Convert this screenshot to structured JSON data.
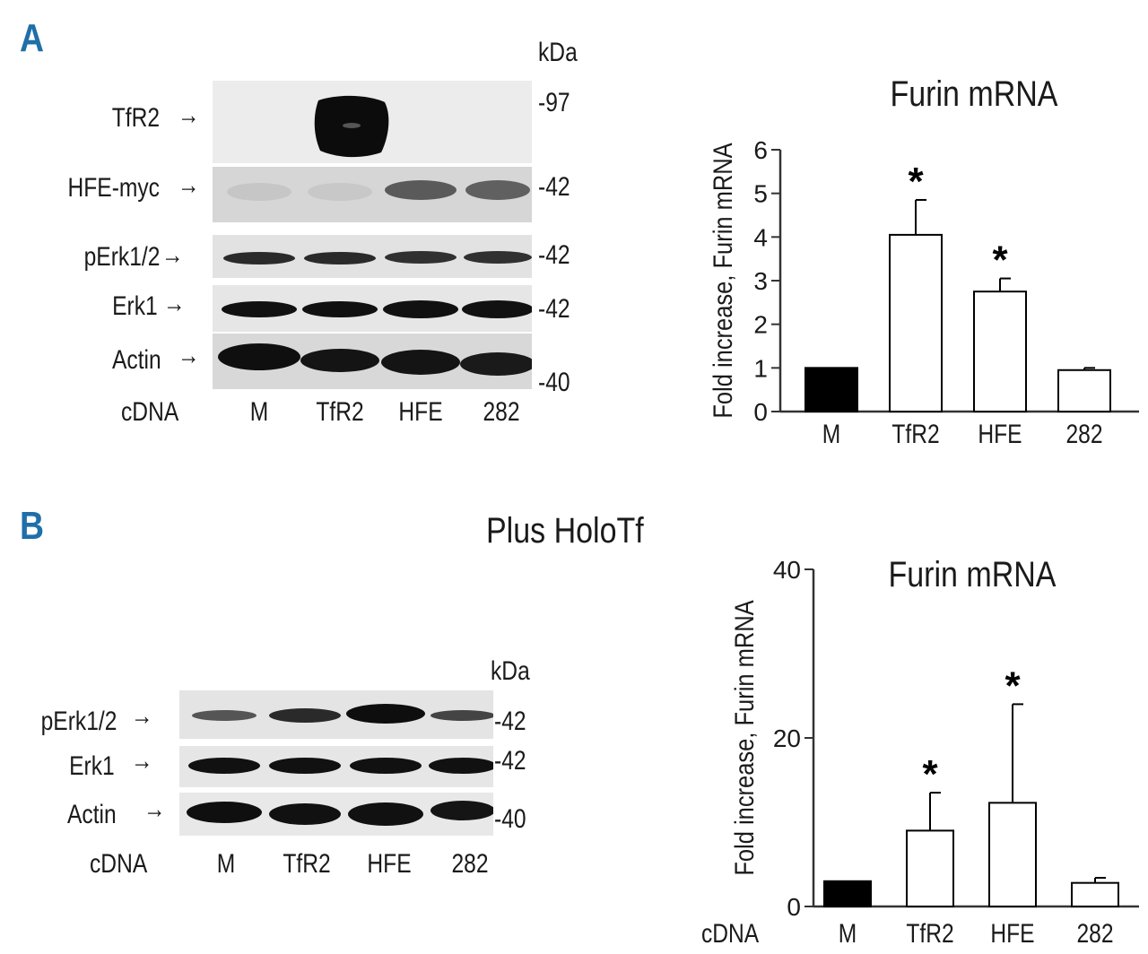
{
  "panel_a": {
    "letter": "A",
    "kda_label": "kDa",
    "blot_rows": [
      {
        "label": "TfR2",
        "marker": "-97"
      },
      {
        "label": "HFE-myc",
        "marker": "-42"
      },
      {
        "label": "pErk1/2",
        "marker": "-42"
      },
      {
        "label": "Erk1",
        "marker": "-42"
      },
      {
        "label": "Actin",
        "marker": "-40"
      }
    ],
    "arrow": "→",
    "cdna_label": "cDNA",
    "lanes": [
      "M",
      "TfR2",
      "HFE",
      "282"
    ]
  },
  "panel_b": {
    "letter": "B",
    "subtitle": "Plus HoloTf",
    "kda_label": "kDa",
    "blot_rows": [
      {
        "label": "pErk1/2",
        "marker": "-42"
      },
      {
        "label": "Erk1",
        "marker": "-42"
      },
      {
        "label": "Actin",
        "marker": "-40"
      }
    ],
    "arrow": "→",
    "cdna_label": "cDNA",
    "lanes": [
      "M",
      "TfR2",
      "HFE",
      "282"
    ]
  },
  "chart_data": [
    {
      "type": "bar",
      "title": "Furin mRNA",
      "ylabel": "Fold increase, Furin mRNA",
      "xlabel": "",
      "categories": [
        "M",
        "TfR2",
        "HFE",
        "282"
      ],
      "values": [
        1.0,
        4.05,
        2.75,
        0.95
      ],
      "errors": [
        0.0,
        0.8,
        0.3,
        0.05
      ],
      "significance": [
        "",
        "*",
        "*",
        ""
      ],
      "bar_colors": [
        "#000000",
        "#ffffff",
        "#ffffff",
        "#ffffff"
      ],
      "ylim": [
        0,
        6
      ],
      "yticks": [
        0,
        1,
        2,
        3,
        4,
        5,
        6
      ]
    },
    {
      "type": "bar",
      "title": "Furin mRNA",
      "ylabel": "Fold increase, Furin mRNA",
      "xlabel": "cDNA",
      "categories": [
        "M",
        "TfR2",
        "HFE",
        "282"
      ],
      "values": [
        3.0,
        9.0,
        12.3,
        2.8
      ],
      "errors": [
        0.0,
        4.5,
        11.7,
        0.6
      ],
      "significance": [
        "",
        "*",
        "*",
        ""
      ],
      "bar_colors": [
        "#000000",
        "#ffffff",
        "#ffffff",
        "#ffffff"
      ],
      "ylim": [
        0,
        40
      ],
      "yticks": [
        0,
        20,
        40
      ]
    }
  ]
}
